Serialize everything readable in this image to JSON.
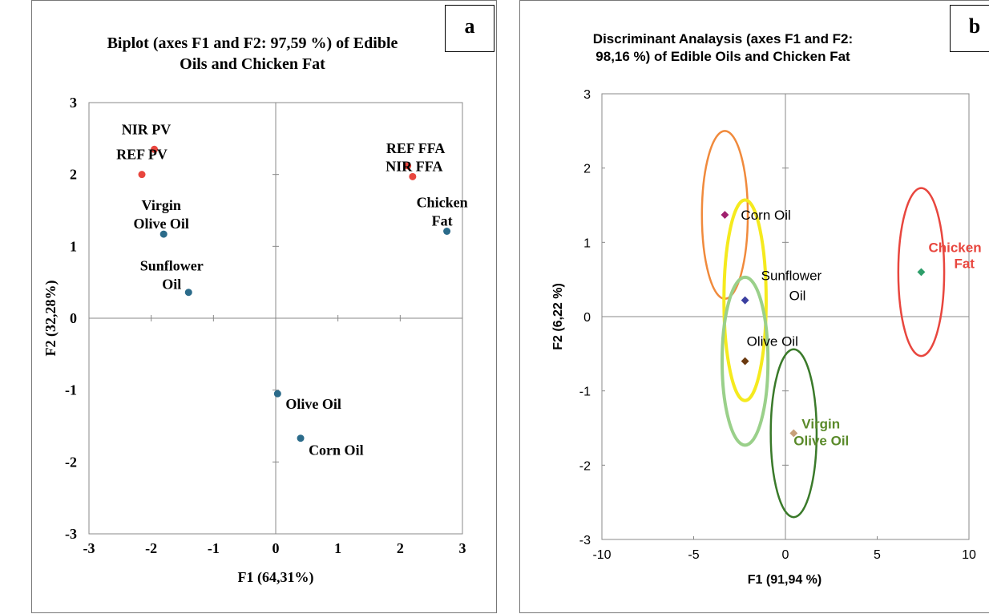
{
  "chart_data": [
    {
      "panel_label": "a",
      "type": "scatter",
      "title_lines": [
        "Biplot (axes F1 and F2: 97,59 %) of Edible",
        "Oils and Chicken Fat"
      ],
      "xlabel": "F1 (64,31%)",
      "ylabel": "F2 (32,28%)",
      "xlim": [
        -3,
        3
      ],
      "ylim": [
        -3,
        3
      ],
      "xticks": [
        "-3",
        "-2",
        "-1",
        "0",
        "1",
        "2",
        "3"
      ],
      "yticks": [
        "-3",
        "-2",
        "-1",
        "0",
        "1",
        "2",
        "3"
      ],
      "grid": false,
      "legend": "none",
      "series": [
        {
          "color": "#e8463e",
          "points": [
            {
              "label": "NIR PV",
              "x": -1.95,
              "y": 2.35
            },
            {
              "label": "REF PV",
              "x": -2.15,
              "y": 2.0
            },
            {
              "label": "REF FFA",
              "x": 2.12,
              "y": 2.12
            },
            {
              "label": "NIR FFA",
              "x": 2.2,
              "y": 1.97
            }
          ]
        },
        {
          "color": "#2b6b8a",
          "points": [
            {
              "label": "Virgin Olive Oil",
              "x": -1.8,
              "y": 1.17
            },
            {
              "label": "Sunflower Oil",
              "x": -1.4,
              "y": 0.36
            },
            {
              "label": "Chicken Fat",
              "x": 2.75,
              "y": 1.21
            },
            {
              "label": "Olive Oil",
              "x": 0.03,
              "y": -1.05
            },
            {
              "label": "Corn Oil",
              "x": 0.4,
              "y": -1.67
            }
          ]
        }
      ]
    },
    {
      "panel_label": "b",
      "type": "scatter",
      "title_lines": [
        "Discriminant Analaysis (axes F1 and F2:",
        "98,16 %) of Edible Oils and Chicken Fat"
      ],
      "xlabel": "F1 (91,94 %)",
      "ylabel": "F2 (6,22 %)",
      "xlim": [
        -10,
        10
      ],
      "ylim": [
        -3,
        3
      ],
      "xticks": [
        "-10",
        "-5",
        "0",
        "5",
        "10"
      ],
      "yticks": [
        "-3",
        "-2",
        "-1",
        "0",
        "1",
        "2",
        "3"
      ],
      "grid": false,
      "legend": "none",
      "points": [
        {
          "label": "Corn Oil",
          "x": -3.3,
          "y": 1.37,
          "color": "#a0206e"
        },
        {
          "label": "Sunflower Oil",
          "x": -2.2,
          "y": 0.22,
          "color": "#3b3fa0"
        },
        {
          "label": "Olive Oil",
          "x": -2.2,
          "y": -0.6,
          "color": "#6b3a10"
        },
        {
          "label": "Virgin Olive Oil",
          "x": 0.45,
          "y": -1.57,
          "color": "#c7a07a"
        },
        {
          "label": "Chicken Fat",
          "x": 7.4,
          "y": 0.6,
          "color": "#2e9e6a"
        }
      ],
      "ellipses": [
        {
          "group": "Corn Oil",
          "cx": -3.3,
          "cy": 1.37,
          "rx": 1.25,
          "ry": 1.13,
          "color": "#f08a3c"
        },
        {
          "group": "Sunflower Oil",
          "cx": -2.2,
          "cy": 0.22,
          "rx": 1.15,
          "ry": 1.35,
          "color": "#f5ea1e"
        },
        {
          "group": "Olive Oil",
          "cx": -2.2,
          "cy": -0.6,
          "rx": 1.25,
          "ry": 1.13,
          "color": "#9ad08a"
        },
        {
          "group": "Virgin Olive Oil",
          "cx": 0.45,
          "cy": -1.57,
          "rx": 1.25,
          "ry": 1.13,
          "color": "#3a7a2a"
        },
        {
          "group": "Chicken Fat",
          "cx": 7.4,
          "cy": 0.6,
          "rx": 1.25,
          "ry": 1.13,
          "color": "#e8463e"
        }
      ],
      "label_colors": {
        "Virgin Olive Oil": "#5a8a2a",
        "Chicken Fat": "#e8463e",
        "default": "#000000"
      }
    }
  ]
}
